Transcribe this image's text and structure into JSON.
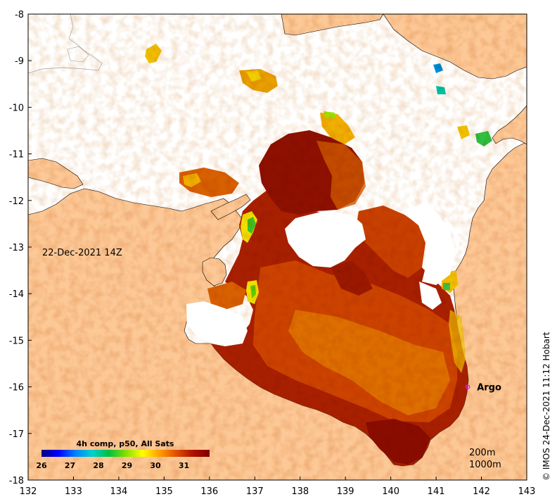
{
  "map": {
    "date_label": "22-Dec-2021 14Z",
    "credit": "© IMOS 24-Dec-2021 11:12 Hobart",
    "x_ticks": [
      "132",
      "133",
      "134",
      "135",
      "136",
      "137",
      "138",
      "139",
      "140",
      "141",
      "142",
      "143"
    ],
    "y_ticks": [
      "-8",
      "-9",
      "-10",
      "-11",
      "-12",
      "-13",
      "-14",
      "-15",
      "-16",
      "-17",
      "-18"
    ],
    "lon_range": [
      132,
      143
    ],
    "lat_range": [
      -18,
      -8
    ],
    "contour_labels": [
      "200m",
      "1000m"
    ],
    "argo": {
      "label": "Argo",
      "lon": 141.7,
      "lat": -16.0,
      "color": "#e020e0"
    },
    "land_color": "#fcc896"
  },
  "colorbar": {
    "title": "4h comp, p50, All Sats",
    "ticks": [
      "26",
      "27",
      "28",
      "29",
      "30",
      "31"
    ],
    "range": [
      26,
      31.9
    ],
    "colors": [
      "#00007f",
      "#0000ff",
      "#0080ff",
      "#00d0d0",
      "#00c040",
      "#80e000",
      "#ffff00",
      "#ffa000",
      "#e05000",
      "#b01000",
      "#800000"
    ]
  }
}
